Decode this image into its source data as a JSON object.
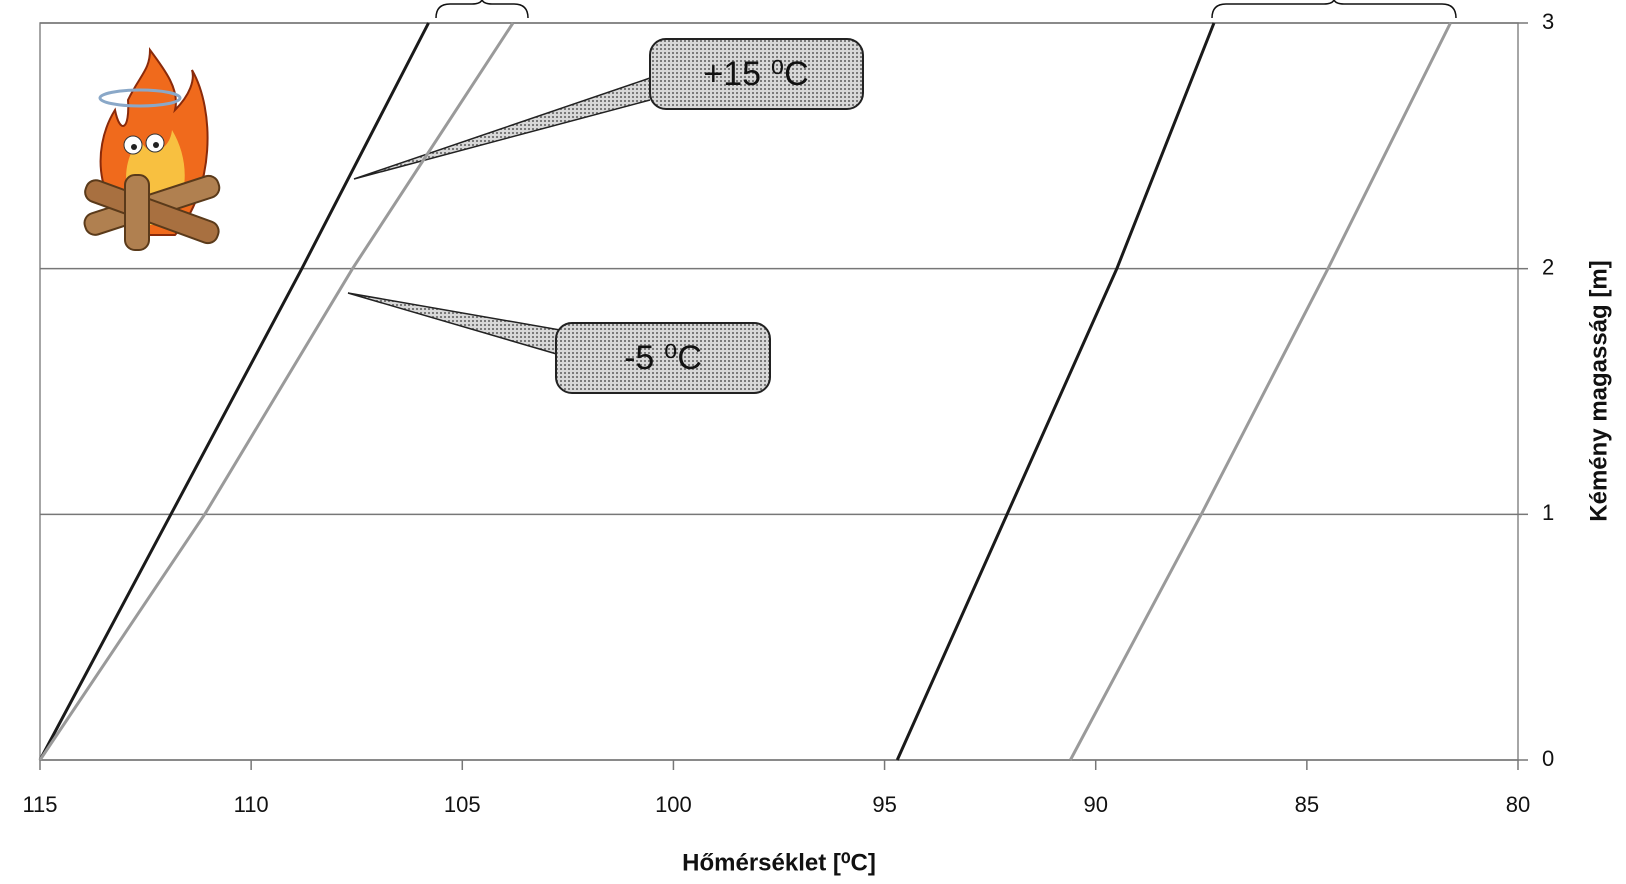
{
  "chart_data": {
    "type": "line",
    "x_label": "Hőmérséklet [⁰C]",
    "y_label": "Kémény magasság [m]",
    "xlim": [
      115,
      80
    ],
    "xticks": [
      115,
      110,
      105,
      100,
      95,
      90,
      85,
      80
    ],
    "ylim": [
      0,
      3
    ],
    "yticks": [
      0,
      1,
      2,
      3
    ],
    "grid": true,
    "annotations": [
      "+15 ⁰C",
      "-5 ⁰C"
    ],
    "series": [
      {
        "color": "#1a1a1a",
        "x": [
          115,
          111.9,
          108.8,
          105.8
        ],
        "values": [
          0,
          1,
          2,
          3
        ]
      },
      {
        "color": "#9a9a9a",
        "x": [
          115,
          111.1,
          107.6,
          103.8
        ],
        "values": [
          0,
          1,
          2,
          3
        ]
      },
      {
        "color": "#1a1a1a",
        "x": [
          94.7,
          92.1,
          89.5,
          87.2
        ],
        "values": [
          0,
          1,
          2,
          3
        ]
      },
      {
        "color": "#9a9a9a",
        "x": [
          90.6,
          87.5,
          84.5,
          81.6
        ],
        "values": [
          0,
          1,
          2,
          3
        ]
      }
    ]
  }
}
